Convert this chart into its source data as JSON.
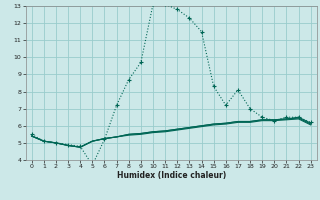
{
  "xlabel": "Humidex (Indice chaleur)",
  "xlim": [
    -0.5,
    23.5
  ],
  "ylim": [
    4,
    13
  ],
  "yticks": [
    4,
    5,
    6,
    7,
    8,
    9,
    10,
    11,
    12,
    13
  ],
  "xticks": [
    0,
    1,
    2,
    3,
    4,
    5,
    6,
    7,
    8,
    9,
    10,
    11,
    12,
    13,
    14,
    15,
    16,
    17,
    18,
    19,
    20,
    21,
    22,
    23
  ],
  "bg_color": "#cce8e8",
  "grid_color": "#99cccc",
  "line_color": "#006655",
  "curve1_x": [
    0,
    1,
    2,
    3,
    4,
    5,
    6,
    7,
    8,
    9,
    10,
    11,
    12,
    13,
    14,
    15,
    16,
    17,
    18,
    19,
    20,
    21,
    22,
    23
  ],
  "curve1_y": [
    5.5,
    5.1,
    5.0,
    4.9,
    4.8,
    3.7,
    5.2,
    7.2,
    8.7,
    9.7,
    13.1,
    13.1,
    12.8,
    12.3,
    11.5,
    8.3,
    7.2,
    8.1,
    7.0,
    6.5,
    6.3,
    6.5,
    6.5,
    6.2
  ],
  "curve2_x": [
    0,
    1,
    2,
    3,
    4,
    5,
    6,
    7,
    8,
    9,
    10,
    11,
    12,
    13,
    14,
    15,
    16,
    17,
    18,
    19,
    20,
    21,
    22,
    23
  ],
  "curve2_y": [
    5.4,
    5.1,
    5.0,
    4.85,
    4.75,
    5.1,
    5.25,
    5.35,
    5.45,
    5.5,
    5.6,
    5.65,
    5.75,
    5.85,
    5.95,
    6.05,
    6.1,
    6.2,
    6.2,
    6.3,
    6.3,
    6.35,
    6.4,
    6.05
  ],
  "curve3_x": [
    0,
    1,
    2,
    3,
    4,
    5,
    6,
    7,
    8,
    9,
    10,
    11,
    12,
    13,
    14,
    15,
    16,
    17,
    18,
    19,
    20,
    21,
    22,
    23
  ],
  "curve3_y": [
    5.4,
    5.1,
    5.0,
    4.85,
    4.75,
    5.1,
    5.25,
    5.35,
    5.5,
    5.55,
    5.65,
    5.7,
    5.8,
    5.9,
    6.0,
    6.1,
    6.15,
    6.25,
    6.25,
    6.35,
    6.35,
    6.4,
    6.45,
    6.1
  ],
  "curve4_x": [
    0,
    1,
    2,
    3,
    4,
    5,
    6,
    7,
    8,
    9,
    10,
    11,
    12,
    13,
    14,
    15,
    16,
    17,
    18,
    19,
    20,
    21,
    22,
    23
  ],
  "curve4_y": [
    5.4,
    5.1,
    5.0,
    4.85,
    4.75,
    5.1,
    5.25,
    5.35,
    5.5,
    5.55,
    5.65,
    5.7,
    5.8,
    5.9,
    6.0,
    6.1,
    6.15,
    6.25,
    6.25,
    6.35,
    6.35,
    6.4,
    6.5,
    6.15
  ]
}
